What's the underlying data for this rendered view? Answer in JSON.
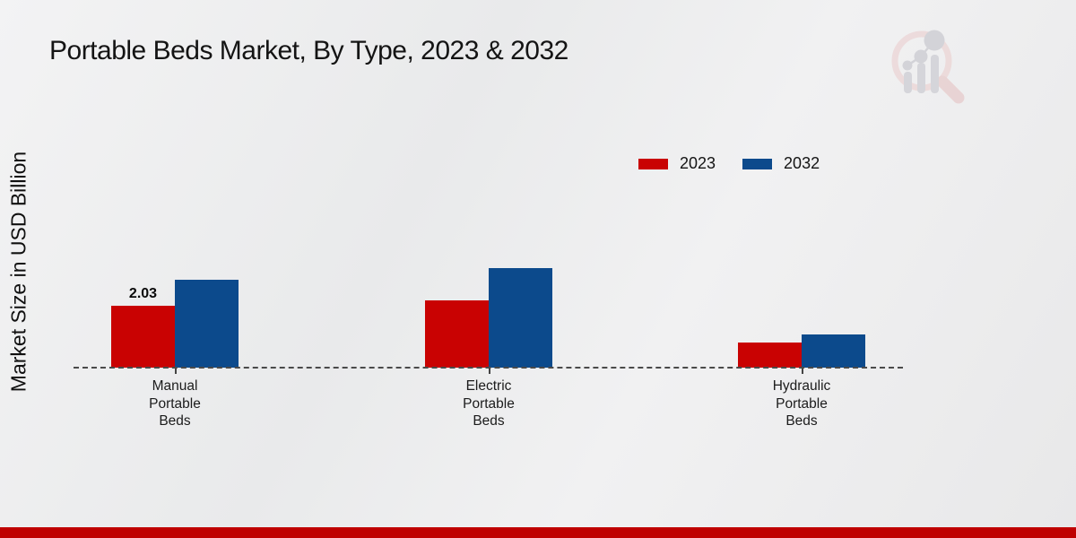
{
  "header": {
    "title": "Portable Beds Market, By Type, 2023 & 2032"
  },
  "chart_data": {
    "type": "bar",
    "title": "Portable Beds Market, By Type, 2023 & 2032",
    "xlabel": "",
    "ylabel": "Market Size in USD Billion",
    "categories": [
      "Manual Portable Beds",
      "Electric Portable Beds",
      "Hydraulic Portable Beds"
    ],
    "category_lines": [
      [
        "Manual",
        "Portable",
        "Beds"
      ],
      [
        "Electric",
        "Portable",
        "Beds"
      ],
      [
        "Hydraulic",
        "Portable",
        "Beds"
      ]
    ],
    "series": [
      {
        "name": "2023",
        "color": "#c90202",
        "values": [
          2.03,
          2.22,
          0.81
        ],
        "bar_labels": [
          "2.03",
          "",
          ""
        ]
      },
      {
        "name": "2032",
        "color": "#0c4a8c",
        "values": [
          2.87,
          3.25,
          1.1
        ],
        "bar_labels": [
          "",
          "",
          ""
        ]
      }
    ],
    "ylim": [
      0,
      3.5
    ],
    "grid": false,
    "axis_style": "dashed-baseline-only",
    "legend_position": "top-right"
  },
  "legend": {
    "items": [
      {
        "label": "2023",
        "color": "#c90202"
      },
      {
        "label": "2032",
        "color": "#0c4a8c"
      }
    ]
  },
  "branding": {
    "logo_icon": "magnifier-bar-chart-logo",
    "footer_color": "#bf0000"
  },
  "colors": {
    "series_2023": "#c90202",
    "series_2032": "#0c4a8c",
    "baseline": "#4a4a4a",
    "background": "#ededee"
  }
}
